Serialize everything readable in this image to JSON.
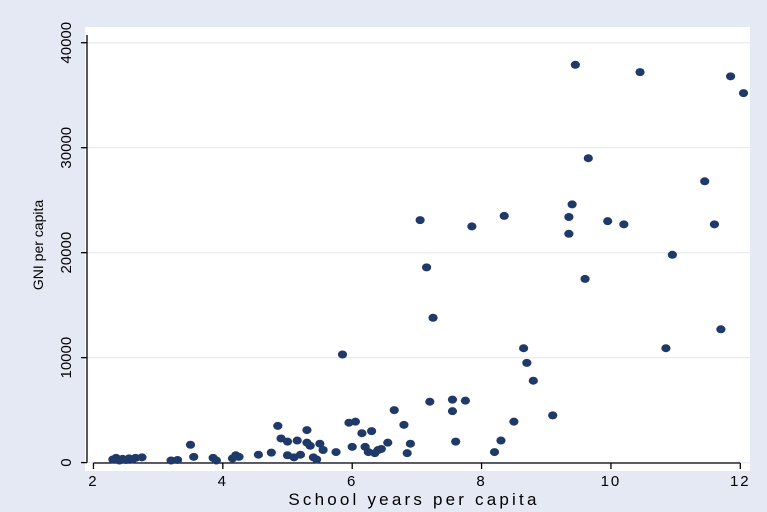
{
  "chart_data": {
    "type": "scatter",
    "xlabel": "School years per capita",
    "ylabel": "GNI per capita",
    "xlim": [
      1.9,
      12.15
    ],
    "ylim": [
      -800,
      41500
    ],
    "xticks": [
      {
        "value": 2,
        "label": "2"
      },
      {
        "value": 4,
        "label": "4"
      },
      {
        "value": 6,
        "label": "6"
      },
      {
        "value": 8,
        "label": "8"
      },
      {
        "value": 10,
        "label": "10"
      },
      {
        "value": 12,
        "label": "12"
      }
    ],
    "yticks": [
      {
        "value": 0,
        "label": "0"
      },
      {
        "value": 10000,
        "label": "10000"
      },
      {
        "value": 20000,
        "label": "20000"
      },
      {
        "value": 30000,
        "label": "30000"
      },
      {
        "value": 40000,
        "label": "40000"
      }
    ],
    "grid": "horizontal",
    "colors": {
      "background": "#e5e9f3",
      "plot": "#ffffff",
      "marker": "#1f3a68",
      "grid": "#e6eaf3"
    },
    "points": [
      {
        "x": 2.3,
        "y": 300
      },
      {
        "x": 2.35,
        "y": 450
      },
      {
        "x": 2.4,
        "y": 200
      },
      {
        "x": 2.45,
        "y": 350
      },
      {
        "x": 2.5,
        "y": 250
      },
      {
        "x": 2.55,
        "y": 400
      },
      {
        "x": 2.6,
        "y": 300
      },
      {
        "x": 2.65,
        "y": 450
      },
      {
        "x": 2.75,
        "y": 500
      },
      {
        "x": 3.2,
        "y": 200
      },
      {
        "x": 3.3,
        "y": 250
      },
      {
        "x": 3.5,
        "y": 1700
      },
      {
        "x": 3.55,
        "y": 550
      },
      {
        "x": 3.85,
        "y": 450
      },
      {
        "x": 3.9,
        "y": 200
      },
      {
        "x": 4.15,
        "y": 400
      },
      {
        "x": 4.2,
        "y": 700
      },
      {
        "x": 4.25,
        "y": 550
      },
      {
        "x": 4.55,
        "y": 750
      },
      {
        "x": 4.75,
        "y": 950
      },
      {
        "x": 4.85,
        "y": 3500
      },
      {
        "x": 4.9,
        "y": 2300
      },
      {
        "x": 5.0,
        "y": 700
      },
      {
        "x": 5.0,
        "y": 2000
      },
      {
        "x": 5.1,
        "y": 500
      },
      {
        "x": 5.15,
        "y": 2100
      },
      {
        "x": 5.2,
        "y": 750
      },
      {
        "x": 5.3,
        "y": 3100
      },
      {
        "x": 5.3,
        "y": 1900
      },
      {
        "x": 5.35,
        "y": 1600
      },
      {
        "x": 5.4,
        "y": 500
      },
      {
        "x": 5.45,
        "y": 300
      },
      {
        "x": 5.5,
        "y": 1800
      },
      {
        "x": 5.55,
        "y": 1200
      },
      {
        "x": 5.75,
        "y": 1000
      },
      {
        "x": 5.85,
        "y": 10300
      },
      {
        "x": 5.95,
        "y": 3800
      },
      {
        "x": 6.0,
        "y": 1500
      },
      {
        "x": 6.05,
        "y": 3900
      },
      {
        "x": 6.15,
        "y": 2800
      },
      {
        "x": 6.2,
        "y": 1500
      },
      {
        "x": 6.25,
        "y": 1000
      },
      {
        "x": 6.3,
        "y": 3000
      },
      {
        "x": 6.35,
        "y": 900
      },
      {
        "x": 6.4,
        "y": 1200
      },
      {
        "x": 6.45,
        "y": 1300
      },
      {
        "x": 6.55,
        "y": 1900
      },
      {
        "x": 6.65,
        "y": 5000
      },
      {
        "x": 6.8,
        "y": 3600
      },
      {
        "x": 6.85,
        "y": 900
      },
      {
        "x": 6.9,
        "y": 1800
      },
      {
        "x": 7.05,
        "y": 23100
      },
      {
        "x": 7.15,
        "y": 18600
      },
      {
        "x": 7.2,
        "y": 5800
      },
      {
        "x": 7.25,
        "y": 13800
      },
      {
        "x": 7.55,
        "y": 6000
      },
      {
        "x": 7.55,
        "y": 4900
      },
      {
        "x": 7.6,
        "y": 2000
      },
      {
        "x": 7.75,
        "y": 5900
      },
      {
        "x": 7.85,
        "y": 22500
      },
      {
        "x": 8.2,
        "y": 1000
      },
      {
        "x": 8.3,
        "y": 2100
      },
      {
        "x": 8.35,
        "y": 23500
      },
      {
        "x": 8.5,
        "y": 3900
      },
      {
        "x": 8.65,
        "y": 10900
      },
      {
        "x": 8.7,
        "y": 9500
      },
      {
        "x": 8.8,
        "y": 7800
      },
      {
        "x": 9.1,
        "y": 4500
      },
      {
        "x": 9.35,
        "y": 23400
      },
      {
        "x": 9.35,
        "y": 21800
      },
      {
        "x": 9.4,
        "y": 24600
      },
      {
        "x": 9.45,
        "y": 37900
      },
      {
        "x": 9.6,
        "y": 17500
      },
      {
        "x": 9.65,
        "y": 29000
      },
      {
        "x": 9.95,
        "y": 23000
      },
      {
        "x": 10.2,
        "y": 22700
      },
      {
        "x": 10.45,
        "y": 37200
      },
      {
        "x": 10.85,
        "y": 10900
      },
      {
        "x": 10.95,
        "y": 19800
      },
      {
        "x": 11.45,
        "y": 26800
      },
      {
        "x": 11.6,
        "y": 22700
      },
      {
        "x": 11.7,
        "y": 12700
      },
      {
        "x": 11.85,
        "y": 36800
      },
      {
        "x": 12.05,
        "y": 35200
      }
    ]
  }
}
